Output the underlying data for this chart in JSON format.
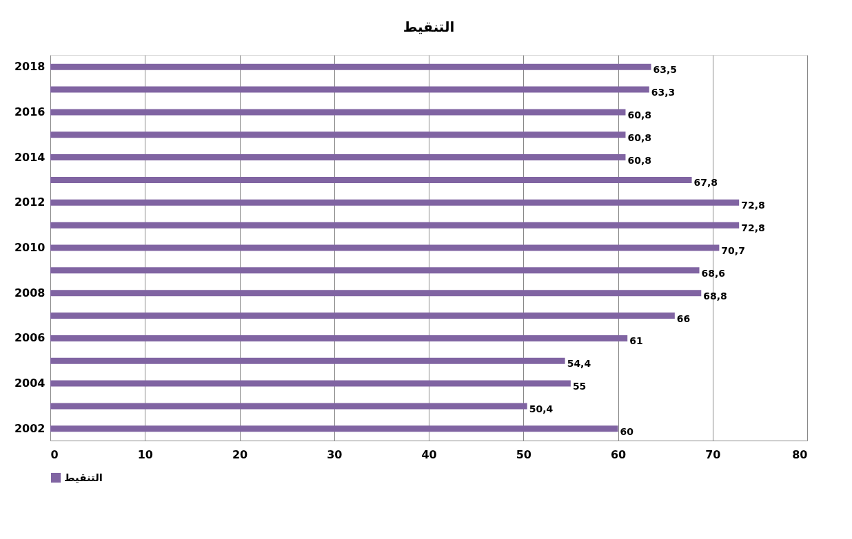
{
  "chart_data": {
    "type": "bar",
    "orientation": "horizontal",
    "title": "التنقيط",
    "categories": [
      "2018",
      null,
      "2016",
      null,
      "2014",
      null,
      "2012",
      null,
      "2010",
      null,
      "2008",
      null,
      "2006",
      null,
      "2004",
      null,
      "2002"
    ],
    "series": [
      {
        "name": "التنقيط",
        "color": "#8064a2",
        "values": [
          63.5,
          63.3,
          60.8,
          60.8,
          60.8,
          67.8,
          72.8,
          72.8,
          70.7,
          68.6,
          68.8,
          66,
          61,
          54.4,
          55,
          50.4,
          60
        ],
        "value_labels": [
          "63,5",
          "63,3",
          "60,8",
          "60,8",
          "60,8",
          "67,8",
          "72,8",
          "72,8",
          "70,7",
          "68,6",
          "68,8",
          "66",
          "61",
          "54,4",
          "55",
          "50,4",
          "60"
        ]
      }
    ],
    "xlim": [
      0,
      80
    ],
    "xticks": [
      0,
      10,
      20,
      30,
      40,
      50,
      60,
      70,
      80
    ],
    "grid": "x",
    "legend": "bottom"
  }
}
